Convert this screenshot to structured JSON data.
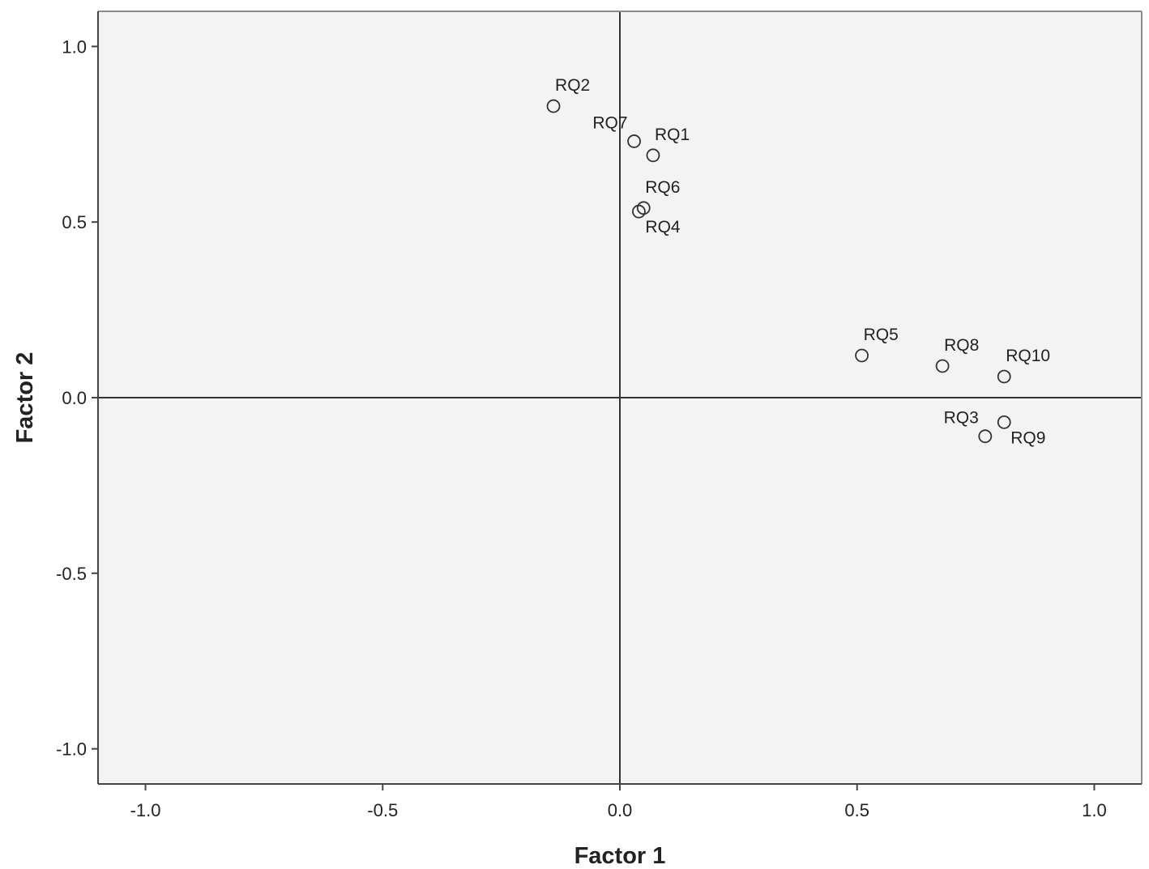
{
  "chart_data": {
    "type": "scatter",
    "title": "",
    "xlabel": "Factor 1",
    "ylabel": "Factor 2",
    "xlim": [
      -1.1,
      1.1
    ],
    "ylim": [
      -1.1,
      1.1
    ],
    "xticks": [
      -1.0,
      -0.5,
      0.0,
      0.5,
      1.0
    ],
    "yticks": [
      -1.0,
      -0.5,
      0.0,
      0.5,
      1.0
    ],
    "xtick_labels": [
      "-1.0",
      "-0.5",
      "0.0",
      "0.5",
      "1.0"
    ],
    "ytick_labels": [
      "-1.0",
      "-0.5",
      "0.0",
      "0.5",
      "1.0"
    ],
    "grid": false,
    "reference_lines": {
      "x": 0.0,
      "y": 0.0
    },
    "marker": "open-circle",
    "points": [
      {
        "label": "RQ1",
        "x": 0.07,
        "y": 0.69,
        "label_side": "above-right"
      },
      {
        "label": "RQ2",
        "x": -0.14,
        "y": 0.83,
        "label_side": "above-right"
      },
      {
        "label": "RQ3",
        "x": 0.77,
        "y": -0.11,
        "label_side": "above-left"
      },
      {
        "label": "RQ4",
        "x": 0.04,
        "y": 0.53,
        "label_side": "below-right"
      },
      {
        "label": "RQ5",
        "x": 0.51,
        "y": 0.12,
        "label_side": "above-right"
      },
      {
        "label": "RQ6",
        "x": 0.05,
        "y": 0.54,
        "label_side": "above-right"
      },
      {
        "label": "RQ7",
        "x": 0.03,
        "y": 0.73,
        "label_side": "above-left"
      },
      {
        "label": "RQ8",
        "x": 0.68,
        "y": 0.09,
        "label_side": "above-right"
      },
      {
        "label": "RQ9",
        "x": 0.81,
        "y": -0.07,
        "label_side": "below-right"
      },
      {
        "label": "RQ10",
        "x": 0.81,
        "y": 0.06,
        "label_side": "above-right"
      }
    ]
  },
  "colors": {
    "plot_background": "#f3f3f3",
    "frame": "#8c8c8c",
    "axis_line": "#444444",
    "reference_line": "#333333",
    "marker_stroke": "#333333",
    "text": "#222222"
  }
}
